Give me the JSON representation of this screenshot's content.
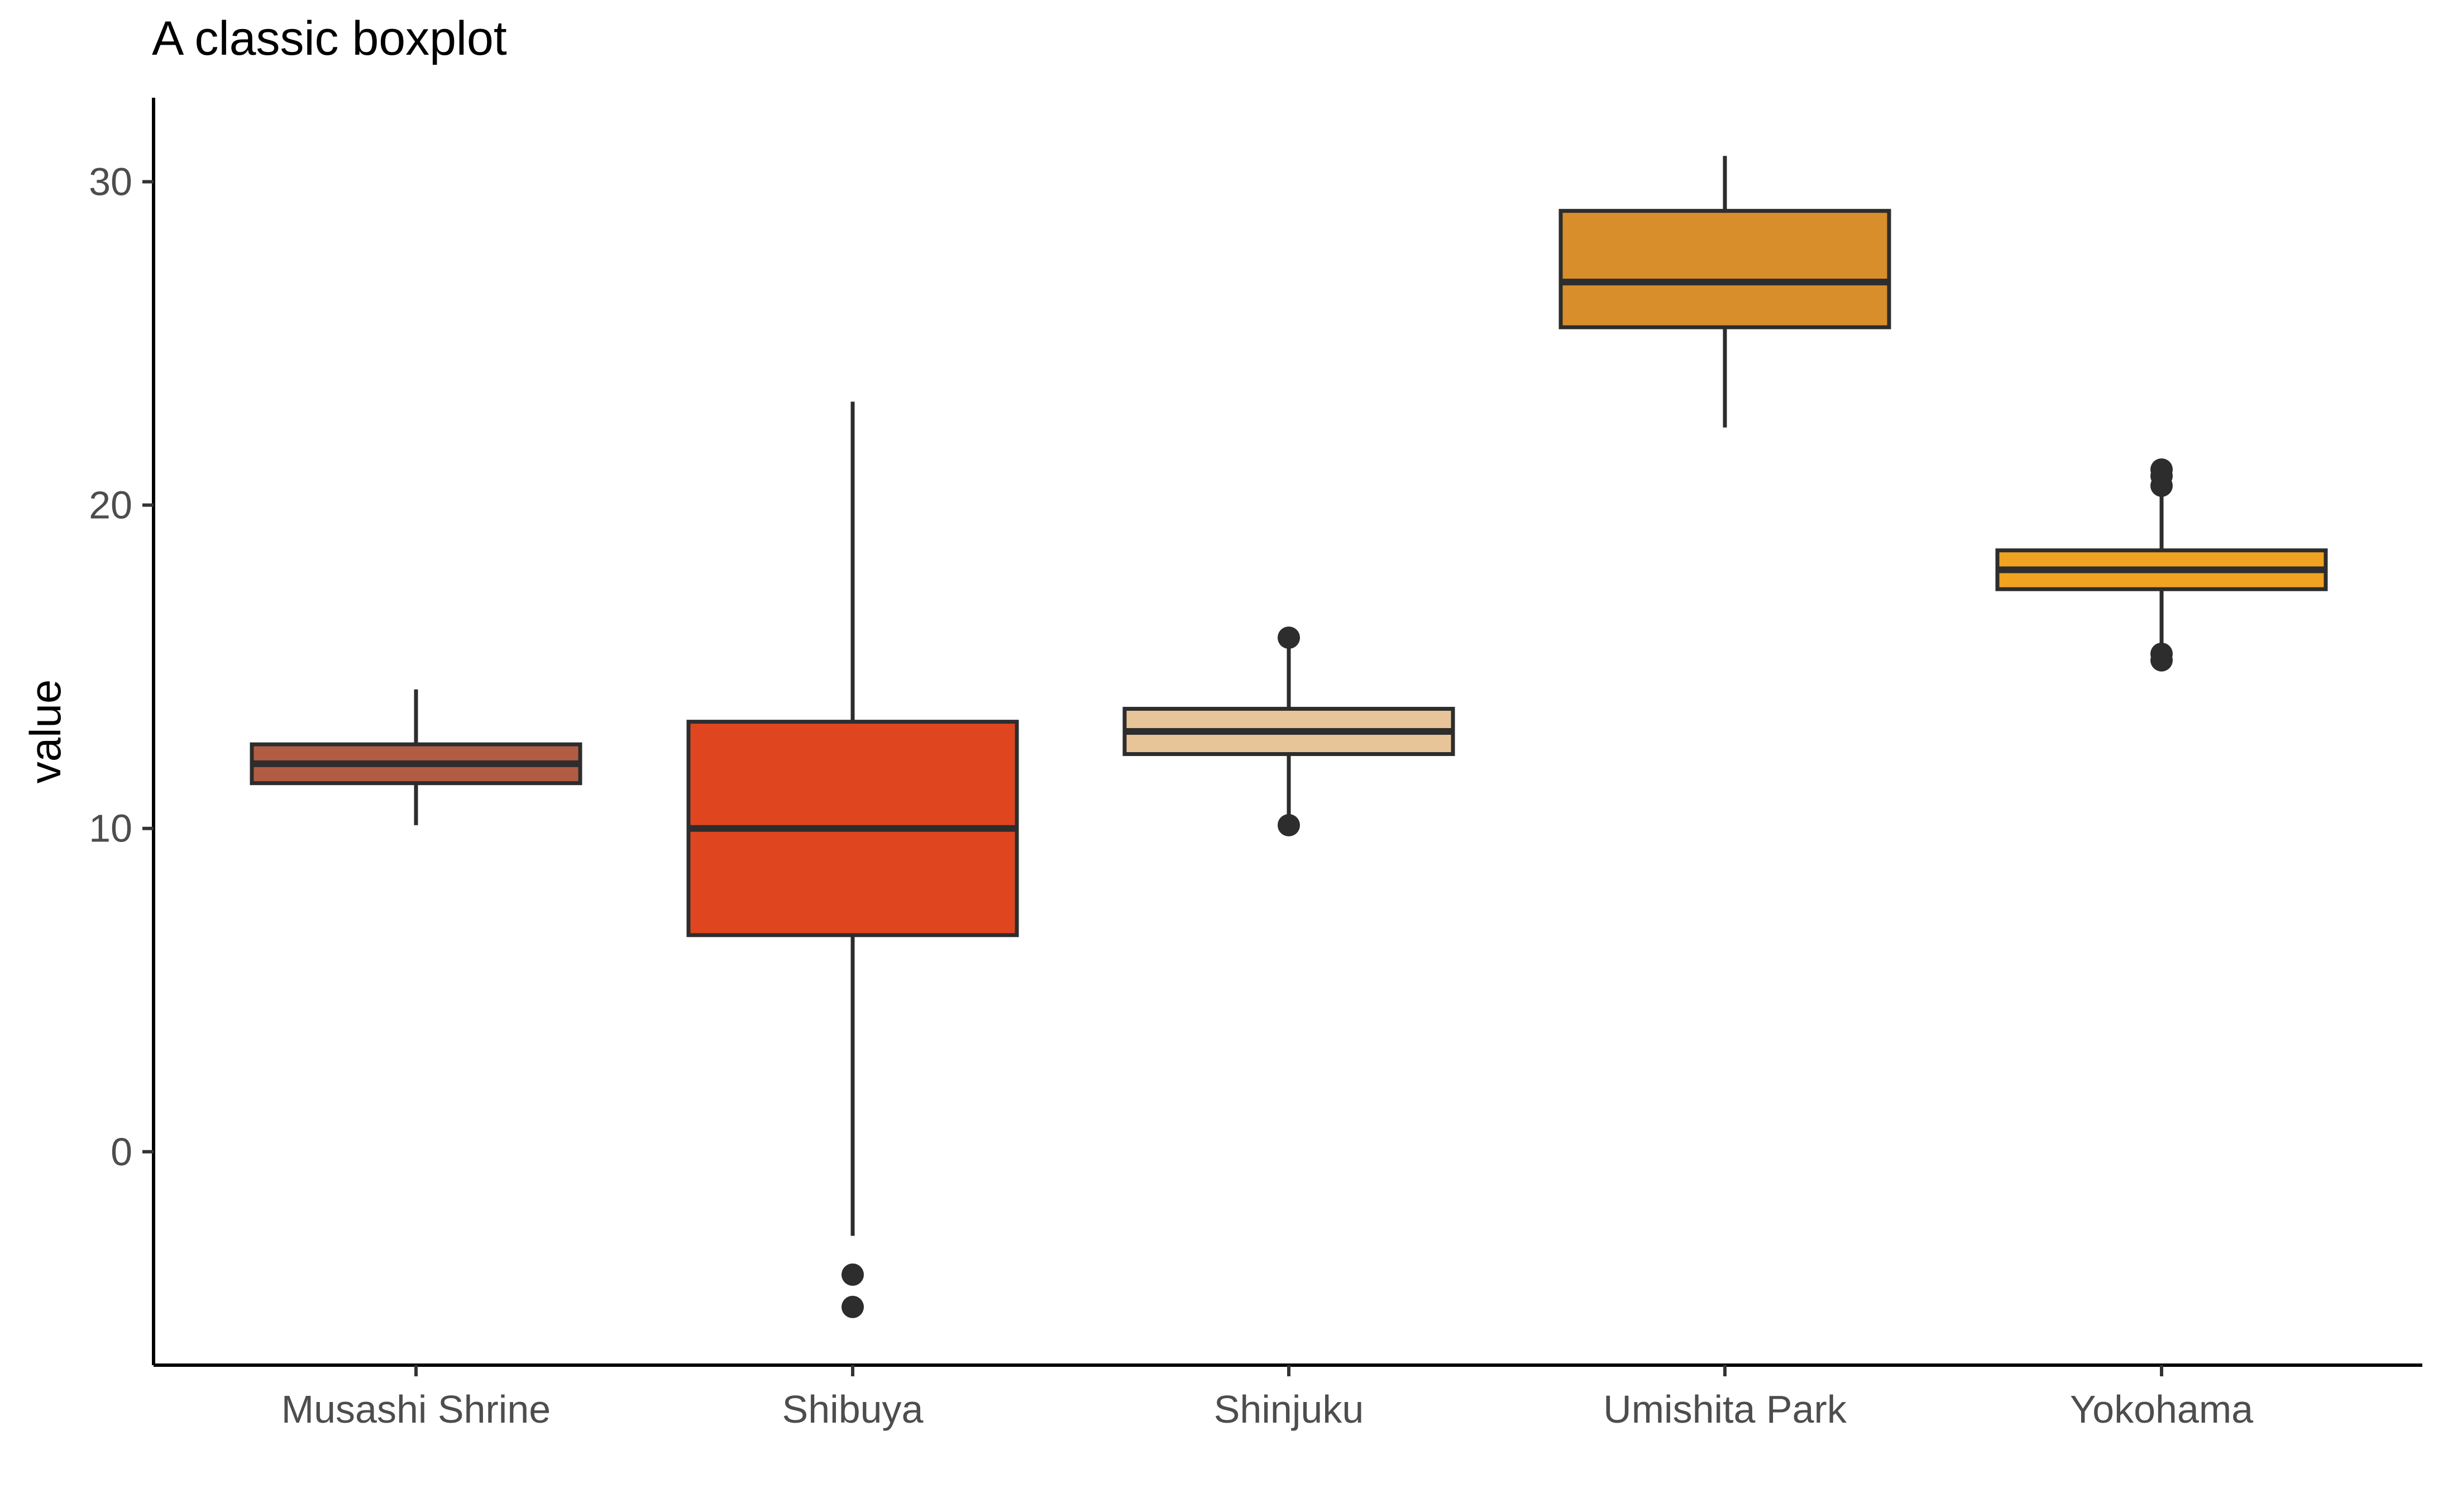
{
  "chart_data": {
    "type": "boxplot",
    "title": "A classic boxplot",
    "xlabel": "",
    "ylabel": "value",
    "ylim": [
      -6.6,
      32.6
    ],
    "yticks": [
      0,
      10,
      20,
      30
    ],
    "grid": false,
    "legend": "none",
    "categories": [
      "Musashi Shrine",
      "Shibuya",
      "Shinjuku",
      "Umishita Park",
      "Yokohama"
    ],
    "boxes": [
      {
        "category": "Musashi Shrine",
        "color": "#B25D43",
        "whisker_low": 10.1,
        "q1": 11.4,
        "median": 12.0,
        "q3": 12.6,
        "whisker_high": 14.3,
        "outliers": []
      },
      {
        "category": "Shibuya",
        "color": "#DF461F",
        "whisker_low": -2.6,
        "q1": 6.7,
        "median": 10.0,
        "q3": 13.3,
        "whisker_high": 23.2,
        "outliers": [
          -3.8,
          -4.8
        ]
      },
      {
        "category": "Shinjuku",
        "color": "#E8C499",
        "whisker_low": 10.1,
        "q1": 12.3,
        "median": 13.0,
        "q3": 13.7,
        "whisker_high": 15.8,
        "outliers": [
          15.9,
          10.1
        ]
      },
      {
        "category": "Umishita Park",
        "color": "#D88E2B",
        "whisker_low": 22.4,
        "q1": 25.5,
        "median": 26.9,
        "q3": 29.1,
        "whisker_high": 30.8,
        "outliers": []
      },
      {
        "category": "Yokohama",
        "color": "#F0A321",
        "whisker_low": 15.4,
        "q1": 17.4,
        "median": 18.0,
        "q3": 18.6,
        "whisker_high": 20.5,
        "outliers": [
          21.1,
          20.9,
          20.6,
          15.4,
          15.2
        ]
      }
    ],
    "stroke_color": "#2D2D2D",
    "axis_color": "#000000",
    "tick_label_color": "#4D4D4D"
  }
}
